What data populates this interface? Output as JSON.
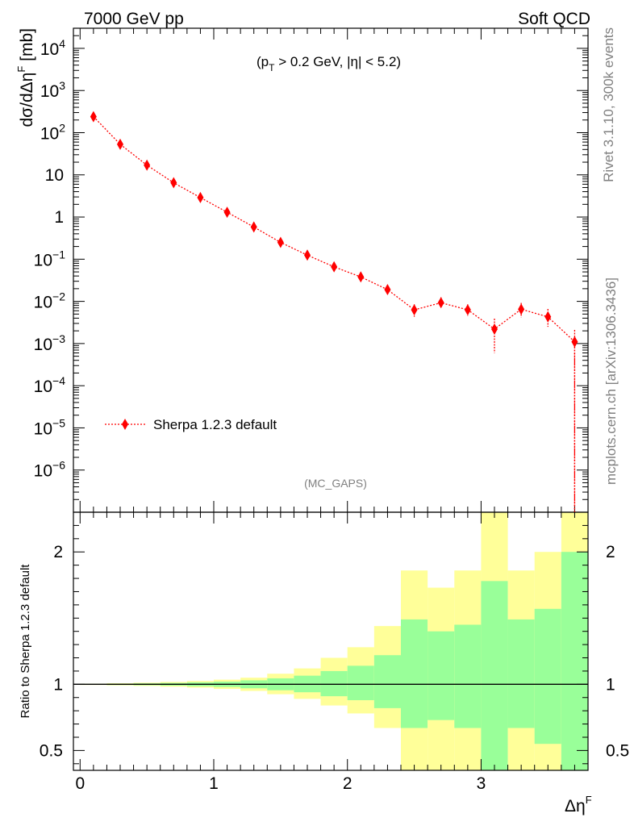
{
  "header": {
    "left": "7000 GeV pp",
    "right": "Soft QCD"
  },
  "side_labels": {
    "rivet": "Rivet 3.1.10,  300k events",
    "mcplots": "mcplots.cern.ch [arXiv:1306.3436]"
  },
  "main_plot": {
    "ylabel": "dσ/dΔη",
    "ylabel_sup": "F",
    "ylabel_unit": " [mb]",
    "cut": {
      "open": "(p",
      "sub": "T",
      "rest": " > 0.2 GeV, |η| < 5.2)"
    },
    "watermark": "(MC_GAPS)"
  },
  "ratio_plot": {
    "ylabel": "Ratio to Sherpa 1.2.3 default",
    "xlabel": "Δη",
    "xlabel_sup": "F"
  },
  "legend": {
    "entry": "Sherpa 1.2.3 default"
  },
  "colors": {
    "series": "#ff0000",
    "band_inner": "#99ff99",
    "band_outer": "#ffff99"
  },
  "chart_data": {
    "type": "scatter",
    "main": {
      "scale": "log",
      "ylim": [
        1e-07,
        30000
      ],
      "xlim": [
        -0.05,
        3.8
      ],
      "yticks": [
        {
          "label": "10",
          "sup": "4",
          "value": 10000
        },
        {
          "label": "10",
          "sup": "3",
          "value": 1000
        },
        {
          "label": "10",
          "sup": "2",
          "value": 100
        },
        {
          "label": "10",
          "sup": "",
          "value": 10
        },
        {
          "label": "1",
          "sup": "",
          "value": 1
        },
        {
          "label": "10",
          "sup": "−1",
          "value": 0.1
        },
        {
          "label": "10",
          "sup": "−2",
          "value": 0.01
        },
        {
          "label": "10",
          "sup": "−3",
          "value": 0.001
        },
        {
          "label": "10",
          "sup": "−4",
          "value": 0.0001
        },
        {
          "label": "10",
          "sup": "−5",
          "value": 1e-05
        },
        {
          "label": "10",
          "sup": "−6",
          "value": 1e-06
        }
      ],
      "series": [
        {
          "name": "Sherpa 1.2.3 default",
          "points": [
            {
              "x": 0.1,
              "y": 240,
              "lo": 220,
              "hi": 260
            },
            {
              "x": 0.3,
              "y": 53,
              "lo": 50,
              "hi": 56
            },
            {
              "x": 0.5,
              "y": 17,
              "lo": 16,
              "hi": 18
            },
            {
              "x": 0.7,
              "y": 6.5,
              "lo": 6.1,
              "hi": 6.9
            },
            {
              "x": 0.9,
              "y": 2.9,
              "lo": 2.7,
              "hi": 3.1
            },
            {
              "x": 1.1,
              "y": 1.3,
              "lo": 1.2,
              "hi": 1.4
            },
            {
              "x": 1.3,
              "y": 0.58,
              "lo": 0.54,
              "hi": 0.62
            },
            {
              "x": 1.5,
              "y": 0.25,
              "lo": 0.23,
              "hi": 0.27
            },
            {
              "x": 1.7,
              "y": 0.125,
              "lo": 0.113,
              "hi": 0.137
            },
            {
              "x": 1.9,
              "y": 0.066,
              "lo": 0.059,
              "hi": 0.073
            },
            {
              "x": 2.1,
              "y": 0.038,
              "lo": 0.033,
              "hi": 0.043
            },
            {
              "x": 2.3,
              "y": 0.019,
              "lo": 0.016,
              "hi": 0.022
            },
            {
              "x": 2.5,
              "y": 0.0063,
              "lo": 0.0043,
              "hi": 0.0085
            },
            {
              "x": 2.7,
              "y": 0.0093,
              "lo": 0.0068,
              "hi": 0.0125
            },
            {
              "x": 2.9,
              "y": 0.0063,
              "lo": 0.0045,
              "hi": 0.0085
            },
            {
              "x": 3.1,
              "y": 0.0022,
              "lo": 0.0006,
              "hi": 0.0039
            },
            {
              "x": 3.3,
              "y": 0.0065,
              "lo": 0.0042,
              "hi": 0.0092
            },
            {
              "x": 3.5,
              "y": 0.0043,
              "lo": 0.0025,
              "hi": 0.0066
            },
            {
              "x": 3.7,
              "y": 0.0011,
              "lo": 1e-08,
              "hi": 0.0021
            }
          ]
        }
      ]
    },
    "ratio": {
      "ylim": [
        0.35,
        2.3
      ],
      "yticks": [
        0.5,
        1,
        2
      ],
      "xticks": [
        0,
        1,
        2,
        3
      ],
      "bins": [
        {
          "lo": 0.0,
          "hi": 0.2,
          "in_lo": 0.997,
          "in_hi": 1.003,
          "out_lo": 0.995,
          "out_hi": 1.005
        },
        {
          "lo": 0.2,
          "hi": 0.4,
          "in_lo": 0.995,
          "in_hi": 1.005,
          "out_lo": 0.992,
          "out_hi": 1.008
        },
        {
          "lo": 0.4,
          "hi": 0.6,
          "in_lo": 0.993,
          "in_hi": 1.007,
          "out_lo": 0.988,
          "out_hi": 1.012
        },
        {
          "lo": 0.6,
          "hi": 0.8,
          "in_lo": 0.99,
          "in_hi": 1.01,
          "out_lo": 0.982,
          "out_hi": 1.018
        },
        {
          "lo": 0.8,
          "hi": 1.0,
          "in_lo": 0.985,
          "in_hi": 1.015,
          "out_lo": 0.975,
          "out_hi": 1.025
        },
        {
          "lo": 1.0,
          "hi": 1.2,
          "in_lo": 0.98,
          "in_hi": 1.02,
          "out_lo": 0.965,
          "out_hi": 1.035
        },
        {
          "lo": 1.2,
          "hi": 1.4,
          "in_lo": 0.97,
          "in_hi": 1.03,
          "out_lo": 0.95,
          "out_hi": 1.05
        },
        {
          "lo": 1.4,
          "hi": 1.6,
          "in_lo": 0.955,
          "in_hi": 1.045,
          "out_lo": 0.925,
          "out_hi": 1.08
        },
        {
          "lo": 1.6,
          "hi": 1.8,
          "in_lo": 0.94,
          "in_hi": 1.065,
          "out_lo": 0.89,
          "out_hi": 1.12
        },
        {
          "lo": 1.8,
          "hi": 2.0,
          "in_lo": 0.91,
          "in_hi": 1.1,
          "out_lo": 0.84,
          "out_hi": 1.2
        },
        {
          "lo": 2.0,
          "hi": 2.2,
          "in_lo": 0.88,
          "in_hi": 1.14,
          "out_lo": 0.78,
          "out_hi": 1.28
        },
        {
          "lo": 2.2,
          "hi": 2.4,
          "in_lo": 0.82,
          "in_hi": 1.22,
          "out_lo": 0.67,
          "out_hi": 1.44
        },
        {
          "lo": 2.4,
          "hi": 2.6,
          "in_lo": 0.67,
          "in_hi": 1.49,
          "out_lo": 0.35,
          "out_hi": 1.86
        },
        {
          "lo": 2.6,
          "hi": 2.8,
          "in_lo": 0.73,
          "in_hi": 1.4,
          "out_lo": 0.35,
          "out_hi": 1.73
        },
        {
          "lo": 2.8,
          "hi": 3.0,
          "in_lo": 0.67,
          "in_hi": 1.45,
          "out_lo": 0.35,
          "out_hi": 1.86
        },
        {
          "lo": 3.0,
          "hi": 3.2,
          "in_lo": 0.35,
          "in_hi": 1.78,
          "out_lo": 0.35,
          "out_hi": 2.3
        },
        {
          "lo": 3.2,
          "hi": 3.4,
          "in_lo": 0.67,
          "in_hi": 1.49,
          "out_lo": 0.35,
          "out_hi": 1.86
        },
        {
          "lo": 3.4,
          "hi": 3.6,
          "in_lo": 0.55,
          "in_hi": 1.57,
          "out_lo": 0.35,
          "out_hi": 2.0
        },
        {
          "lo": 3.6,
          "hi": 3.8,
          "in_lo": 0.35,
          "in_hi": 2.0,
          "out_lo": 0.35,
          "out_hi": 2.3
        }
      ]
    }
  }
}
